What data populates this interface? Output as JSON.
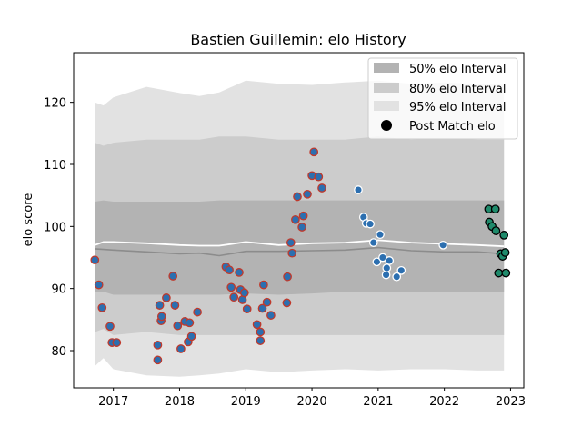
{
  "chart_data": {
    "type": "scatter",
    "title": "Bastien Guillemin: elo History",
    "xlabel": "",
    "ylabel": "elo score",
    "xlim": [
      2016.4,
      2023.2
    ],
    "ylim": [
      74,
      128
    ],
    "xticks": [
      2017,
      2018,
      2019,
      2020,
      2021,
      2022,
      2023
    ],
    "yticks": [
      80,
      90,
      100,
      110,
      120
    ],
    "grid": false,
    "legend_position": "top-right",
    "legend": [
      {
        "label": "50% elo Interval",
        "kind": "band",
        "color": "#b3b3b3"
      },
      {
        "label": "80% elo Interval",
        "kind": "band",
        "color": "#cccccc"
      },
      {
        "label": "95% elo Interval",
        "kind": "band",
        "color": "#e2e2e2"
      },
      {
        "label": "Post Match elo",
        "kind": "marker",
        "color": "#000000"
      }
    ],
    "bands": {
      "x": [
        2016.72,
        2016.85,
        2017.0,
        2017.5,
        2018.0,
        2018.3,
        2018.6,
        2019.0,
        2019.5,
        2020.0,
        2020.5,
        2021.0,
        2021.5,
        2022.0,
        2022.5,
        2022.9
      ],
      "p95_hi": [
        120.0,
        119.5,
        120.8,
        122.5,
        121.5,
        121.0,
        121.6,
        123.5,
        123.0,
        122.8,
        123.2,
        123.5,
        123.0,
        123.2,
        123.0,
        123.0
      ],
      "p95_lo": [
        77.5,
        78.8,
        77.0,
        76.0,
        75.8,
        76.0,
        76.3,
        77.0,
        76.5,
        76.8,
        77.0,
        76.8,
        77.0,
        77.0,
        76.8,
        76.8
      ],
      "p80_hi": [
        113.5,
        113.0,
        113.5,
        114.0,
        114.0,
        114.0,
        114.5,
        114.5,
        114.0,
        114.0,
        114.0,
        114.5,
        114.0,
        114.2,
        114.0,
        114.0
      ],
      "p80_lo": [
        83.0,
        83.5,
        82.5,
        83.0,
        82.5,
        82.5,
        82.5,
        82.5,
        82.5,
        82.5,
        82.5,
        82.5,
        82.5,
        82.5,
        82.5,
        82.5
      ],
      "p50_hi": [
        104.0,
        104.2,
        104.0,
        104.0,
        104.0,
        104.0,
        104.2,
        104.2,
        104.2,
        104.2,
        104.2,
        104.2,
        104.2,
        104.2,
        104.2,
        104.2
      ],
      "p50_lo": [
        89.5,
        89.5,
        89.0,
        89.0,
        89.0,
        89.0,
        89.0,
        89.2,
        89.0,
        89.2,
        89.5,
        89.5,
        89.5,
        89.5,
        89.5,
        89.5
      ],
      "median": [
        96.4,
        96.3,
        96.2,
        95.9,
        95.6,
        95.7,
        95.3,
        96.0,
        96.0,
        96.1,
        96.2,
        96.6,
        96.1,
        95.9,
        95.9,
        95.6
      ],
      "mean": [
        97.0,
        97.5,
        97.5,
        97.3,
        97.0,
        96.9,
        96.9,
        97.5,
        97.0,
        97.3,
        97.4,
        97.8,
        97.4,
        97.2,
        97.0,
        96.8
      ]
    },
    "series": [
      {
        "style": "blue-edge-red",
        "x": [
          2016.72,
          2016.78,
          2016.83,
          2016.95,
          2016.98,
          2017.05,
          2017.67,
          2017.67,
          2017.7,
          2017.72,
          2017.73,
          2017.8,
          2017.9,
          2017.93,
          2017.97,
          2018.02,
          2018.08,
          2018.13,
          2018.15,
          2018.18,
          2018.27,
          2018.7,
          2018.75,
          2018.78,
          2018.82,
          2018.9,
          2018.92,
          2018.95,
          2018.98,
          2019.02,
          2019.17,
          2019.22,
          2019.22,
          2019.25,
          2019.27,
          2019.32,
          2019.38,
          2019.62,
          2019.63,
          2019.68,
          2019.7,
          2019.75,
          2019.78,
          2019.85,
          2019.87,
          2019.93,
          2020.0,
          2020.03,
          2020.1,
          2020.15
        ],
        "y": [
          94.6,
          90.6,
          86.9,
          83.9,
          81.3,
          81.3,
          78.5,
          80.9,
          87.3,
          84.8,
          85.5,
          88.5,
          92.0,
          87.3,
          84.0,
          80.3,
          84.7,
          81.4,
          84.5,
          82.3,
          86.2,
          93.5,
          93.0,
          90.2,
          88.6,
          92.6,
          89.8,
          88.2,
          89.3,
          86.7,
          84.2,
          81.6,
          83.0,
          86.8,
          90.6,
          87.8,
          85.7,
          87.7,
          91.9,
          97.4,
          95.7,
          101.1,
          104.8,
          99.9,
          101.7,
          105.2,
          108.2,
          112.0,
          108.0,
          106.2
        ]
      },
      {
        "style": "blue-edge-white",
        "x": [
          2020.7,
          2020.78,
          2020.82,
          2020.88,
          2020.93,
          2020.98,
          2021.03,
          2021.07,
          2021.12,
          2021.13,
          2021.17,
          2021.28,
          2021.35,
          2021.98
        ],
        "y": [
          105.9,
          101.5,
          100.5,
          100.4,
          97.4,
          94.3,
          98.7,
          95.0,
          92.2,
          93.3,
          94.5,
          91.9,
          92.9,
          97.0
        ]
      },
      {
        "style": "green-edge-black",
        "x": [
          2022.67,
          2022.68,
          2022.72,
          2022.77,
          2022.78,
          2022.82,
          2022.85,
          2022.88,
          2022.9,
          2022.92,
          2022.93
        ],
        "y": [
          102.8,
          100.7,
          100.0,
          102.8,
          99.3,
          92.5,
          95.6,
          95.2,
          98.6,
          95.8,
          92.5
        ]
      }
    ]
  },
  "colors": {
    "band50": "#b3b3b3",
    "band80": "#cccccc",
    "band95": "#e2e2e2",
    "median_line": "#8c8c8c",
    "mean_line": "#ffffff",
    "blue_fill": "#2c6fb0",
    "red_edge": "#c0392b",
    "white_edge": "#ffffff",
    "green_fill": "#1f8a6b",
    "black_edge": "#000000"
  }
}
